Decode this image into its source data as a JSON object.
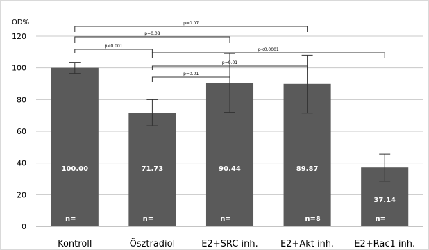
{
  "chart_data": {
    "type": "bar",
    "ylabel": "OD%",
    "ylim": [
      0,
      120
    ],
    "yticks": [
      0,
      20,
      40,
      60,
      80,
      100,
      120
    ],
    "grid": true,
    "categories": [
      "Kontroll",
      "Ösztradiol",
      "E2+SRC inh.",
      "E2+Akt inh.",
      "E2+Rac1 inh."
    ],
    "values": [
      100.0,
      71.73,
      90.44,
      89.87,
      37.14
    ],
    "value_labels": [
      "100.00",
      "71.73",
      "90.44",
      "89.87",
      "37.14"
    ],
    "error_low": [
      96.5,
      63.5,
      72.0,
      71.5,
      28.5
    ],
    "error_high": [
      103.5,
      80.0,
      109.0,
      108.0,
      45.5
    ],
    "n_labels": [
      "n=",
      "n=",
      "n=",
      "n=8",
      "n="
    ],
    "significance": [
      {
        "from": 0,
        "to": 3,
        "label": "p=0.07"
      },
      {
        "from": 0,
        "to": 2,
        "label": "p=0.08"
      },
      {
        "from": 0,
        "to": 1,
        "label": "p<0.001"
      },
      {
        "from": 1,
        "to": 4,
        "label": "p<0.0001"
      },
      {
        "from": 1,
        "to": 3,
        "label": "p=0.01"
      },
      {
        "from": 1,
        "to": 2,
        "label": "p=0.01"
      }
    ],
    "colors": {
      "bar": "#5a5a5a",
      "grid": "#c8c8c8",
      "error": "#333333"
    }
  }
}
